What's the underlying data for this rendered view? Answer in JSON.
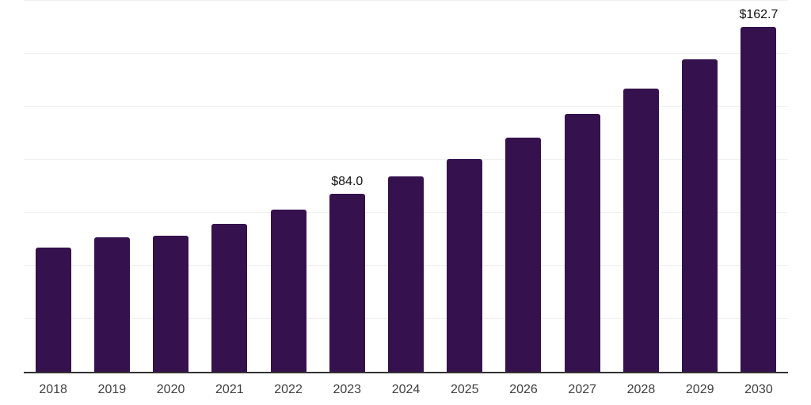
{
  "chart_data": {
    "type": "bar",
    "title": "",
    "xlabel": "",
    "ylabel": "",
    "categories": [
      "2018",
      "2019",
      "2020",
      "2021",
      "2022",
      "2023",
      "2024",
      "2025",
      "2026",
      "2027",
      "2028",
      "2029",
      "2030"
    ],
    "values": [
      58.6,
      63.4,
      64.2,
      69.8,
      76.5,
      84.0,
      92.2,
      100.4,
      110.4,
      121.6,
      133.6,
      147.4,
      162.7
    ],
    "data_labels": {
      "2023": "$84.0",
      "2030": "$162.7"
    },
    "ylim": [
      0,
      175
    ],
    "gridline_step": 25,
    "grid": "horizontal-only",
    "legend": "none",
    "y_tick_labels": "none",
    "colors": {
      "bar": "#35114d",
      "axis_line": "#333333",
      "gridline": "#f0f0f0",
      "data_label": "#111111",
      "tick_label": "#404040",
      "background": "#ffffff"
    }
  }
}
